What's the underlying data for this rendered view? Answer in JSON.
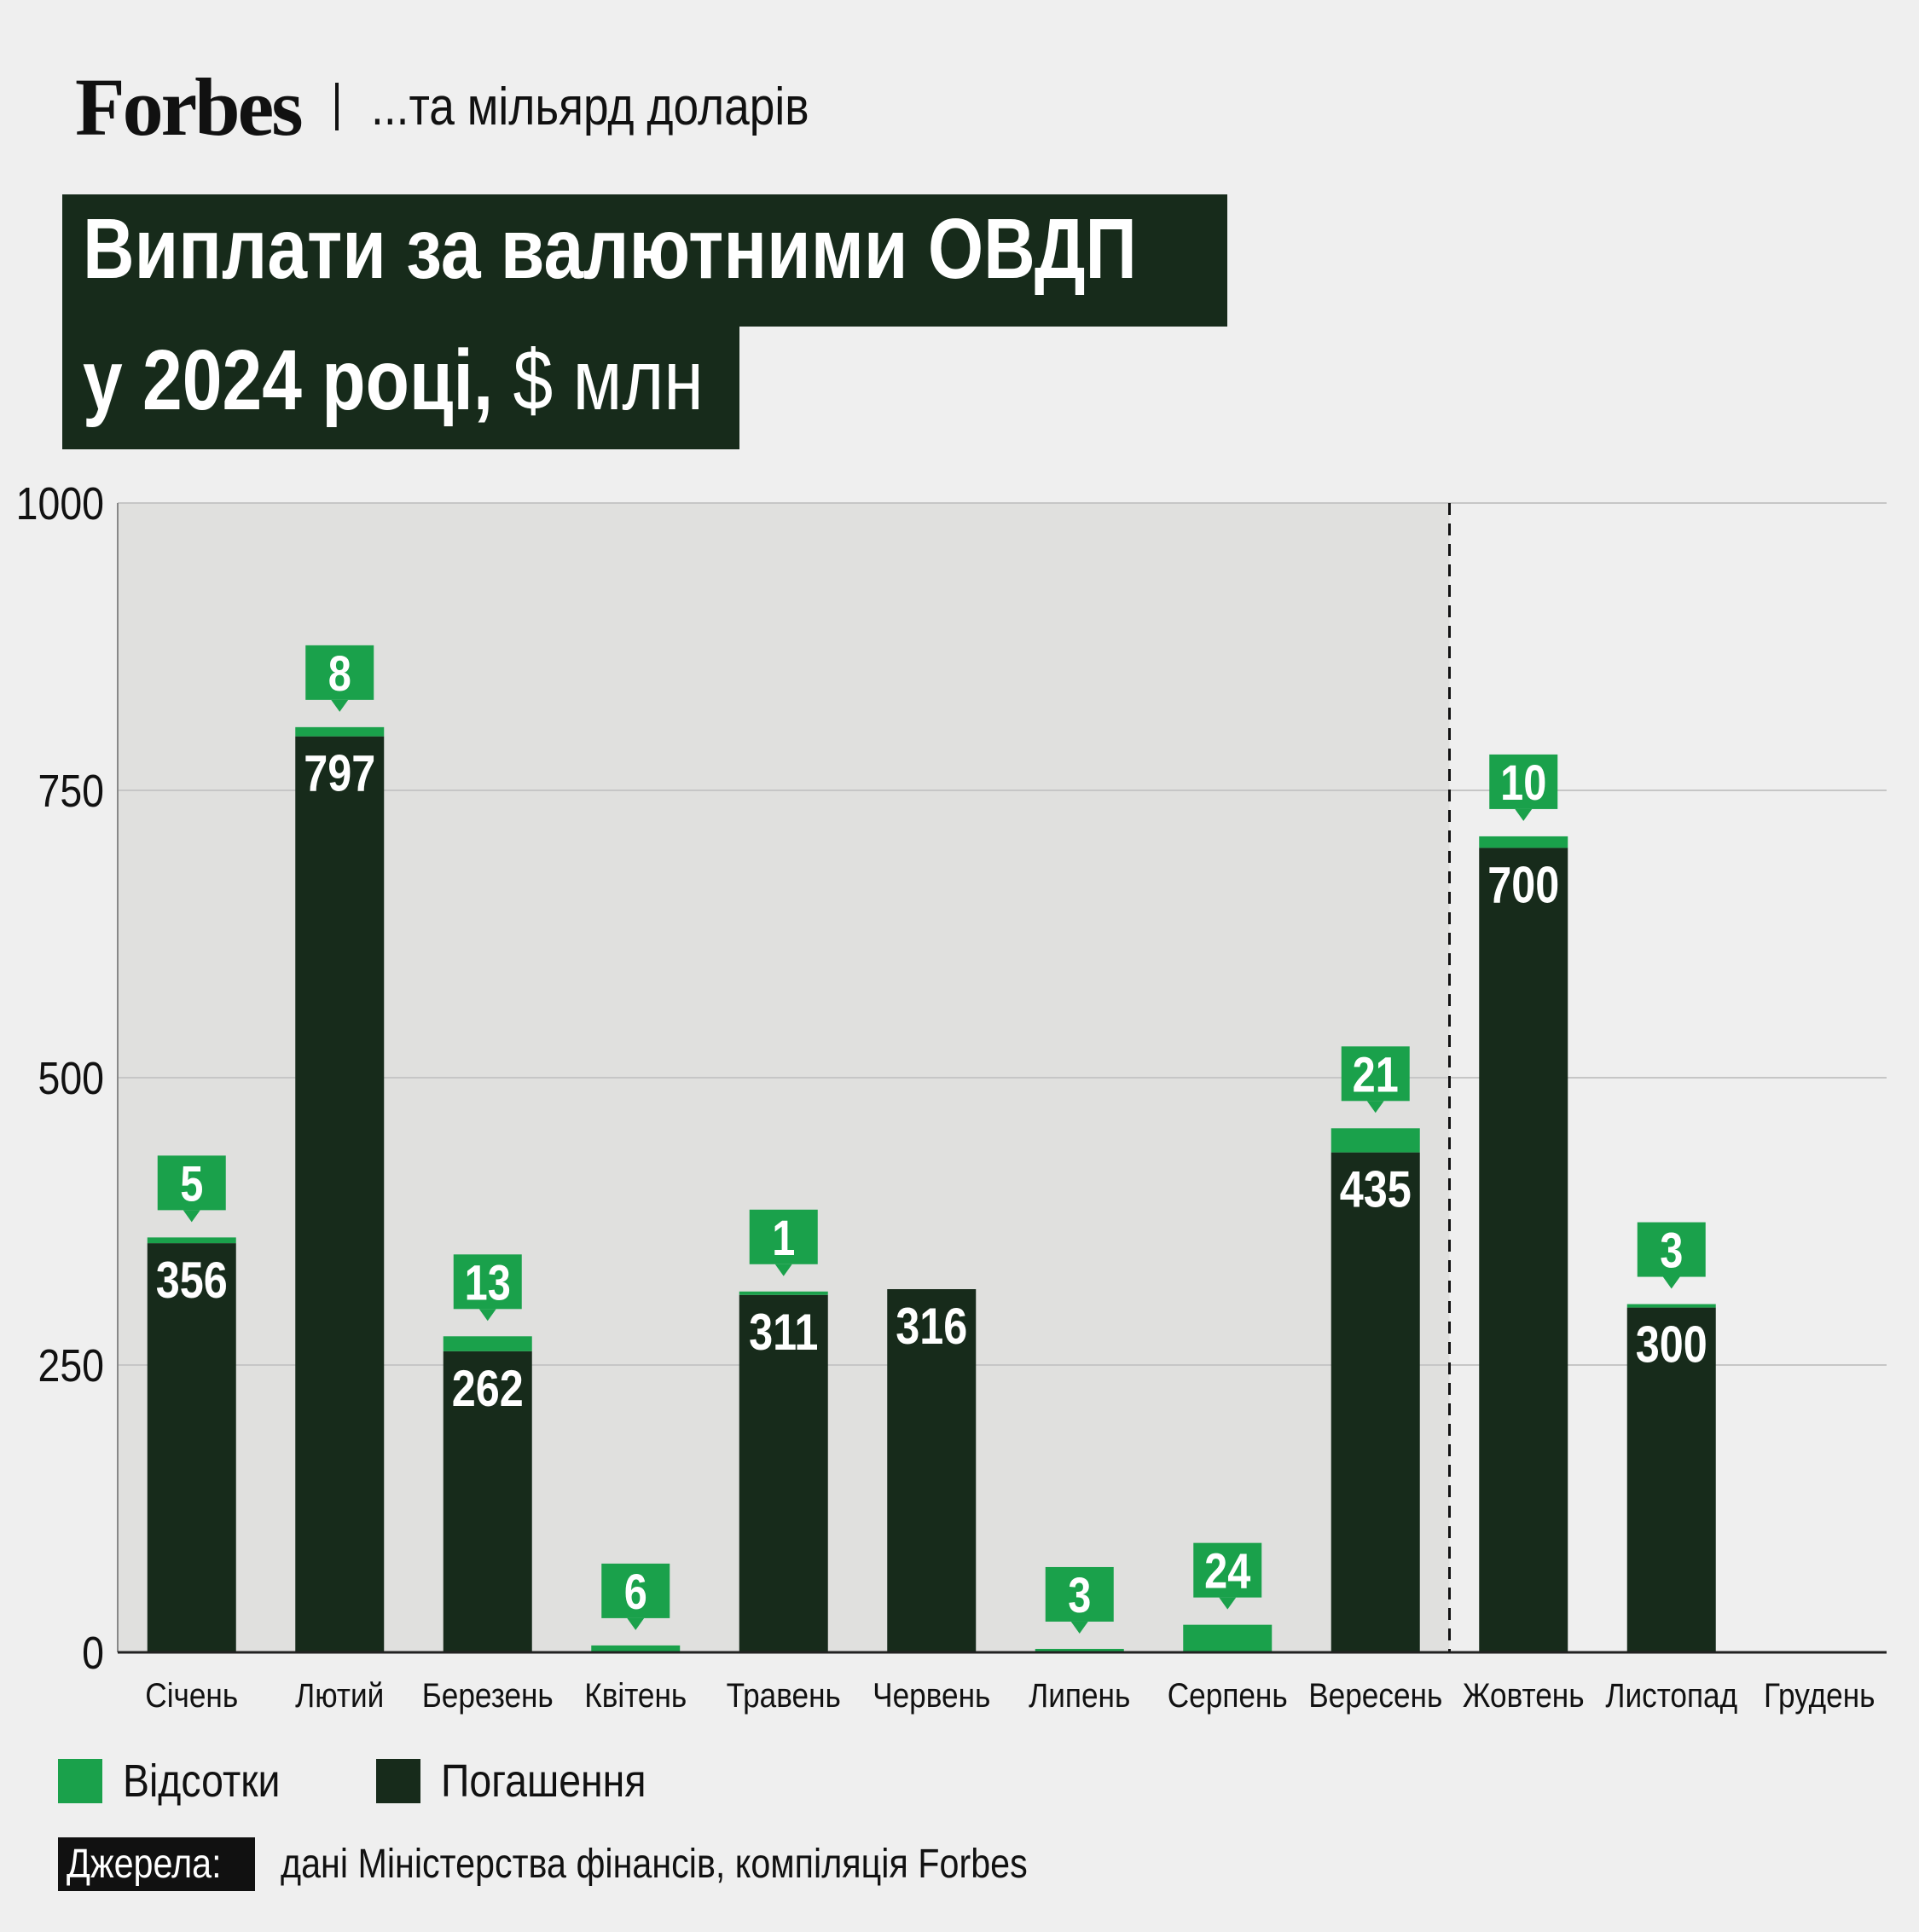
{
  "header": {
    "brand": "Forbes",
    "subtitle": "...та мільярд доларів"
  },
  "title": {
    "line1": "Виплати за валютними ОВДП",
    "line2_bold": "у 2024 році,",
    "line2_unit": "$ млн"
  },
  "colors": {
    "interest": "#1aa14b",
    "repayment": "#172b1b",
    "shade": "#e0e0de",
    "background": "#efefef"
  },
  "legend": {
    "interest_label": "Відсотки",
    "repayment_label": "Погашення"
  },
  "source": {
    "tag": "Джерела:",
    "text": "дані Міністерства фінансів, компіляція Forbes"
  },
  "chart_data": {
    "type": "bar",
    "stacked": true,
    "title": "Виплати за валютними ОВДП у 2024 році, $ млн",
    "categories": [
      "Січень",
      "Лютий",
      "Березень",
      "Квітень",
      "Травень",
      "Червень",
      "Липень",
      "Серпень",
      "Вересень",
      "Жовтень",
      "Листопад",
      "Грудень"
    ],
    "series": [
      {
        "name": "Погашення",
        "values": [
          356,
          797,
          262,
          0,
          311,
          316,
          0,
          0,
          435,
          700,
          300,
          0
        ]
      },
      {
        "name": "Відсотки",
        "values": [
          5,
          8,
          13,
          6,
          1,
          0,
          3,
          24,
          21,
          10,
          3,
          0
        ]
      }
    ],
    "ylim": [
      0,
      1000
    ],
    "yticks": [
      0,
      250,
      500,
      750,
      1000
    ],
    "grid": true,
    "shaded_range": [
      "Січень",
      "Вересень"
    ],
    "legend_position": "bottom-left"
  }
}
